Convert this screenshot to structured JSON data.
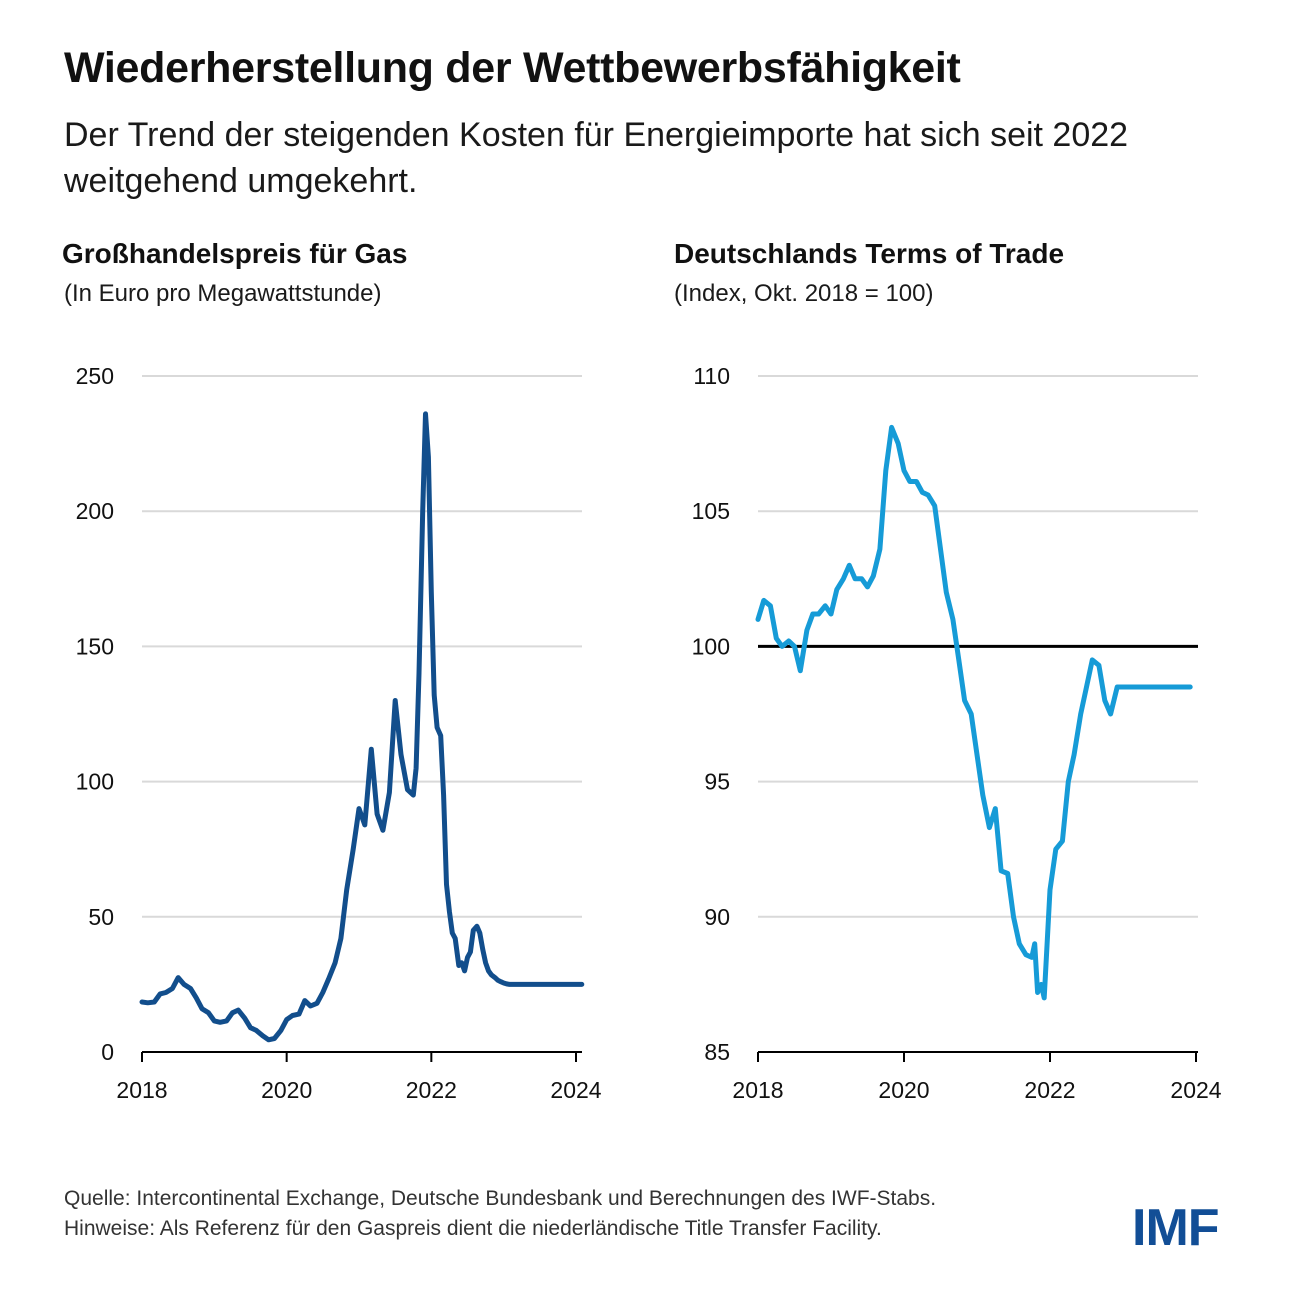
{
  "header": {
    "title": "Wiederherstellung der Wettbewerbsfähigkeit",
    "subtitle": "Der Trend der steigenden Kosten für Energieimporte hat sich seit 2022 weitgehend umgekehrt."
  },
  "footer": {
    "source": "Quelle: Intercontinental Exchange, Deutsche Bundesbank und Berechnungen des IWF-Stabs.",
    "notes": "Hinweise: Als Referenz für den Gaspreis dient die niederländische Title Transfer Facility.",
    "logo": "IMF"
  },
  "colors": {
    "gas_line": "#124e8c",
    "tot_line": "#169bd7",
    "reference_line": "#000000",
    "gridline": "#d9d9d9",
    "logo": "#124e96"
  },
  "chart_data": [
    {
      "type": "line",
      "title": "Großhandelspreis für Gas",
      "subtitle": "(In Euro pro Megawattstunde)",
      "xlabel": "",
      "ylabel": "",
      "xlim": [
        2018.0,
        2024.0
      ],
      "ylim": [
        0,
        250
      ],
      "yticks": [
        0,
        50,
        100,
        150,
        200,
        250
      ],
      "xticks": [
        2018,
        2020,
        2022,
        2024
      ],
      "grid": true,
      "series": [
        {
          "name": "Gaspreis (TTF)",
          "x": [
            2018.0,
            2018.08,
            2018.17,
            2018.25,
            2018.33,
            2018.42,
            2018.5,
            2018.58,
            2018.67,
            2018.75,
            2018.83,
            2018.92,
            2019.0,
            2019.08,
            2019.17,
            2019.25,
            2019.33,
            2019.42,
            2019.5,
            2019.58,
            2019.67,
            2019.75,
            2019.83,
            2019.92,
            2020.0,
            2020.08,
            2020.17,
            2020.25,
            2020.33,
            2020.42,
            2020.5,
            2020.58,
            2020.67,
            2020.75,
            2020.83,
            2020.92,
            2021.0,
            2021.08,
            2021.17,
            2021.25,
            2021.33,
            2021.42,
            2021.5,
            2021.58,
            2021.67,
            2021.75,
            2021.79,
            2021.83,
            2021.88,
            2021.92,
            2021.96,
            2022.0,
            2022.04,
            2022.08,
            2022.13,
            2022.17,
            2022.21,
            2022.25,
            2022.29,
            2022.33,
            2022.38,
            2022.42,
            2022.46,
            2022.5,
            2022.54,
            2022.58,
            2022.63,
            2022.67,
            2022.71,
            2022.75,
            2022.79,
            2022.83,
            2022.88,
            2022.92,
            2022.96,
            2023.0,
            2023.04,
            2023.08,
            2023.17,
            2023.25,
            2023.33,
            2023.42,
            2023.5,
            2023.58,
            2023.67,
            2023.75,
            2023.83,
            2023.92,
            2024.0,
            2024.08
          ],
          "y": [
            18.5,
            18.2,
            18.5,
            21.5,
            22.0,
            23.5,
            27.5,
            25.0,
            23.5,
            20.0,
            16.0,
            14.5,
            11.5,
            11.0,
            11.5,
            14.5,
            15.5,
            12.5,
            9.0,
            8.0,
            6.0,
            4.5,
            5.0,
            8.0,
            12.0,
            13.5,
            14.0,
            19.0,
            17.0,
            18.0,
            22.0,
            27.0,
            33.0,
            42.0,
            60.0,
            75.0,
            90.0,
            84.0,
            112.0,
            88.0,
            82.0,
            96.0,
            130.0,
            110.0,
            97.0,
            95.0,
            105.0,
            140.0,
            200.0,
            236.0,
            220.0,
            170.0,
            132.0,
            120.0,
            117.0,
            95.0,
            62.0,
            52.0,
            44.0,
            42.0,
            32.0,
            33.0,
            30.0,
            35.0,
            37.0,
            45.0,
            46.5,
            44.0,
            38.0,
            33.0,
            30.0,
            28.5,
            27.5,
            26.5,
            26.0,
            25.5,
            25.2,
            25.0,
            25.0,
            25.0,
            25.0,
            25.0,
            25.0,
            25.0,
            25.0,
            25.0,
            25.0,
            25.0,
            25.0,
            25.0
          ]
        }
      ]
    },
    {
      "type": "line",
      "title": "Deutschlands Terms of Trade",
      "subtitle": "(Index, Okt. 2018 = 100)",
      "xlabel": "",
      "ylabel": "",
      "xlim": [
        2018.0,
        2024.0
      ],
      "ylim": [
        85,
        110
      ],
      "yticks": [
        85,
        90,
        95,
        100,
        105,
        110
      ],
      "xticks": [
        2018,
        2020,
        2022,
        2024
      ],
      "grid": true,
      "reference_line": 100,
      "series": [
        {
          "name": "Terms of Trade",
          "x": [
            2018.0,
            2018.08,
            2018.17,
            2018.25,
            2018.33,
            2018.42,
            2018.5,
            2018.58,
            2018.67,
            2018.75,
            2018.83,
            2018.92,
            2019.0,
            2019.08,
            2019.17,
            2019.25,
            2019.33,
            2019.42,
            2019.5,
            2019.58,
            2019.67,
            2019.75,
            2019.83,
            2019.92,
            2020.0,
            2020.08,
            2020.17,
            2020.25,
            2020.33,
            2020.42,
            2020.5,
            2020.58,
            2020.67,
            2020.75,
            2020.83,
            2020.92,
            2021.0,
            2021.08,
            2021.17,
            2021.25,
            2021.33,
            2021.42,
            2021.5,
            2021.58,
            2021.67,
            2021.75,
            2021.79,
            2021.83,
            2021.88,
            2021.92,
            2022.0,
            2022.08,
            2022.17,
            2022.25,
            2022.33,
            2022.42,
            2022.5,
            2022.58,
            2022.67,
            2022.75,
            2022.83,
            2022.92,
            2023.0,
            2023.08,
            2023.17,
            2023.25,
            2023.33,
            2023.42,
            2023.5,
            2023.58,
            2023.67,
            2023.75,
            2023.83,
            2023.92
          ],
          "y": [
            101.0,
            101.7,
            101.5,
            100.3,
            100.0,
            100.2,
            100.0,
            99.1,
            100.6,
            101.2,
            101.2,
            101.5,
            101.2,
            102.1,
            102.5,
            103.0,
            102.5,
            102.5,
            102.2,
            102.6,
            103.6,
            106.5,
            108.1,
            107.5,
            106.5,
            106.1,
            106.1,
            105.7,
            105.6,
            105.2,
            103.6,
            102.0,
            101.0,
            99.5,
            98.0,
            97.5,
            96.0,
            94.5,
            93.3,
            94.0,
            91.7,
            91.6,
            90.0,
            89.0,
            88.6,
            88.5,
            89.0,
            87.2,
            87.5,
            87.0,
            91.0,
            92.5,
            92.8,
            95.0,
            96.0,
            97.5,
            98.5,
            99.5,
            99.3,
            98.0,
            97.5,
            98.5,
            98.5,
            98.5,
            98.5,
            98.5,
            98.5,
            98.5,
            98.5,
            98.5,
            98.5,
            98.5,
            98.5,
            98.5
          ]
        }
      ]
    }
  ]
}
